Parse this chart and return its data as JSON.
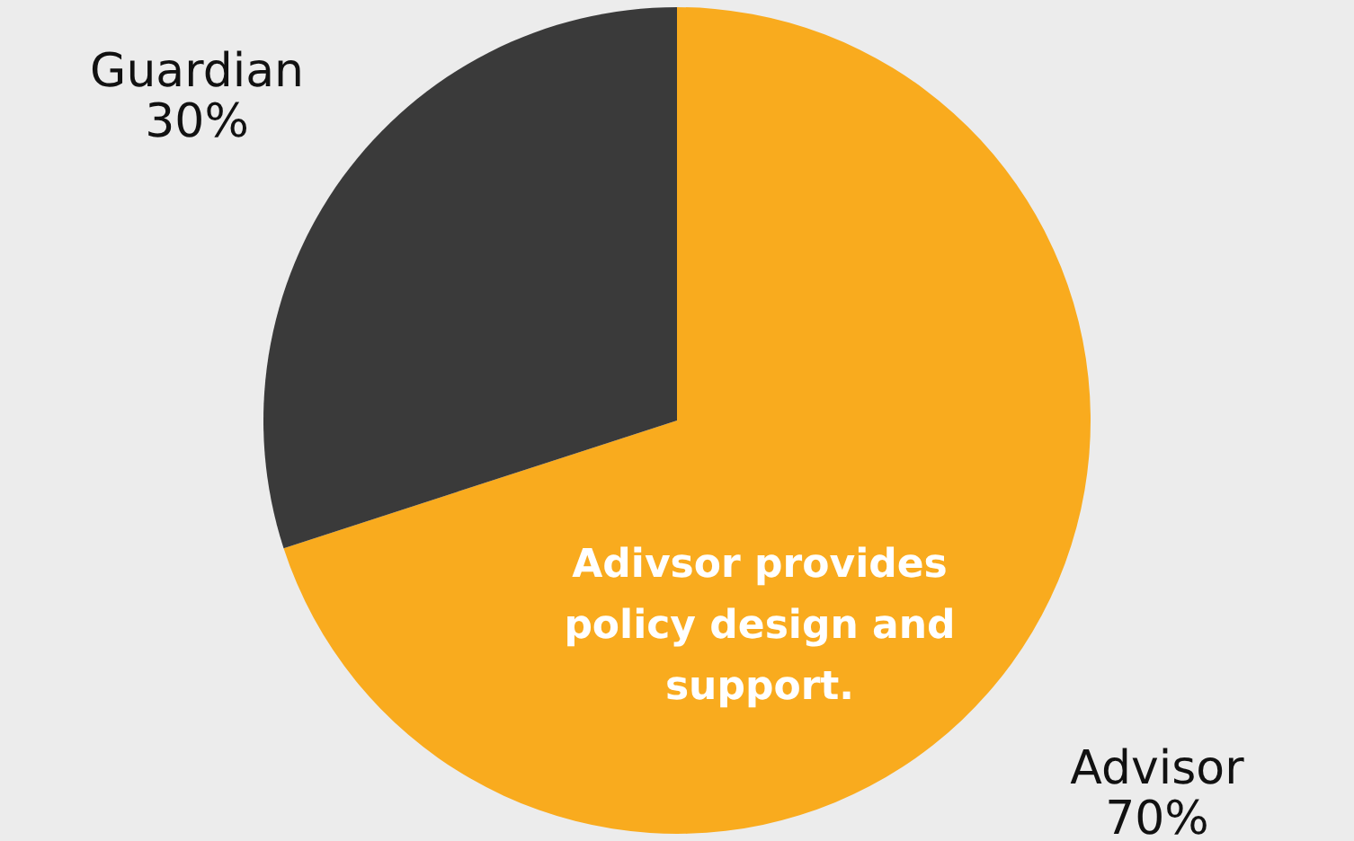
{
  "chart_data": {
    "type": "pie",
    "categories": [
      "Advisor",
      "Guardian"
    ],
    "values": [
      70,
      30
    ],
    "colors": [
      "#f9ab1e",
      "#3a3a3a"
    ],
    "value_labels": [
      "70%",
      "30%"
    ],
    "annotations": [
      "Adivsor provides policy design and support."
    ]
  }
}
